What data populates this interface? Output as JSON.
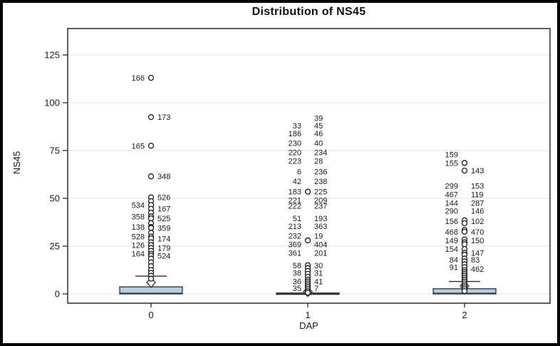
{
  "window": {
    "background": "#ffffff",
    "border_color": "#000000"
  },
  "chart_data": {
    "type": "boxplot",
    "title": "Distribution of NS45",
    "xlabel": "DAP",
    "ylabel": "NS45",
    "categories": [
      "0",
      "1",
      "2"
    ],
    "yticks": [
      0,
      25,
      50,
      75,
      100,
      125
    ],
    "ylim": [
      -2,
      139
    ],
    "grid": "horizontal",
    "colors": {
      "box_fill": "#b9cde1",
      "box_stroke": "#2f2f2f",
      "grid": "#e3e3e3",
      "frame": "#2b2b2b",
      "text": "#1a1a1a",
      "marker_fill": "#ffffff"
    },
    "groups": [
      {
        "category": "0",
        "box": {
          "q1": 0,
          "median": 0.4,
          "q3": 3.7,
          "mean": 6.0,
          "whisker_high": 9.3,
          "whisker_low": 0
        },
        "outlier_circles": [
          113,
          92.5,
          77.5,
          61.5,
          50.5,
          48.5,
          46.5,
          44.5,
          42.5,
          40.5,
          39.5,
          37,
          35,
          34.5,
          32,
          30,
          29,
          27,
          25.5,
          24,
          22.5,
          21,
          20,
          18.5,
          16.5,
          14.5,
          12.5,
          11,
          9.5,
          8
        ],
        "outlier_labels": [
          {
            "l": "166",
            "v": 113
          },
          {
            "r": "173",
            "v": 92.5
          },
          {
            "l": "165",
            "v": 77.5
          },
          {
            "r": "348",
            "v": 61.5
          },
          {
            "r": "526",
            "v": 50.5
          },
          {
            "l": "534",
            "v": 46.5
          },
          {
            "r": "167",
            "v": 44.5
          },
          {
            "l": "358",
            "v": 40.5
          },
          {
            "r": "525",
            "v": 39.5
          },
          {
            "l": "138",
            "v": 35
          },
          {
            "r": "359",
            "v": 34.5
          },
          {
            "l": "528",
            "v": 30
          },
          {
            "r": "174",
            "v": 29
          },
          {
            "l": "126",
            "v": 25.5
          },
          {
            "r": "179",
            "v": 24
          },
          {
            "l": "164",
            "v": 21
          },
          {
            "r": "524",
            "v": 20
          }
        ]
      },
      {
        "category": "1",
        "box": {
          "q1": 0,
          "median": 0,
          "q3": 0.5,
          "mean": 1.2,
          "whisker_high": 0.5,
          "whisker_low": 0
        },
        "outlier_circles": [
          53.5,
          28,
          15,
          13.5,
          12,
          10.5,
          9,
          7.5,
          6.5,
          5.5,
          4.5,
          3.5,
          2.5,
          1.5,
          0.7
        ],
        "outlier_labels": [
          {
            "r": "39",
            "v": 92
          },
          {
            "l": "33",
            "r": "45",
            "v": 88
          },
          {
            "l": "186",
            "r": "46",
            "v": 84
          },
          {
            "l": "230",
            "r": "40",
            "v": 79
          },
          {
            "l": "220",
            "r": "234",
            "v": 74
          },
          {
            "l": "223",
            "r": "28",
            "v": 69.5
          },
          {
            "l": "6",
            "r": "236",
            "v": 64
          },
          {
            "l": "42",
            "r": "238",
            "v": 59
          },
          {
            "l": "183",
            "r": "225",
            "v": 53.5
          },
          {
            "l": "221",
            "r": "209",
            "v": 49
          },
          {
            "l": "222",
            "r": "237",
            "v": 46
          },
          {
            "l": "51",
            "r": "193",
            "v": 39.5
          },
          {
            "l": "213",
            "r": "363",
            "v": 35.5
          },
          {
            "l": "232",
            "r": "19",
            "v": 30.5
          },
          {
            "l": "369",
            "r": "404",
            "v": 26
          },
          {
            "l": "361",
            "r": "201",
            "v": 21.5
          },
          {
            "l": "58",
            "r": "30",
            "v": 15
          },
          {
            "l": "38",
            "r": "31",
            "v": 11
          },
          {
            "l": "36",
            "r": "41",
            "v": 6.5
          },
          {
            "l": "35",
            "r": "7",
            "v": 3
          }
        ]
      },
      {
        "category": "2",
        "box": {
          "q1": 0,
          "median": 0.4,
          "q3": 2.7,
          "mean": 4.1,
          "whisker_high": 6.5,
          "whisker_low": 0
        },
        "outlier_circles": [
          68.5,
          64.5,
          38.5,
          37,
          33.5,
          32.5,
          28.5,
          27,
          26,
          23.5,
          21.5,
          20.5,
          18.5,
          17,
          15.5,
          14,
          12.5,
          11.5,
          10.5,
          9.5,
          8.5,
          7.5,
          6.5,
          5.5,
          4.5,
          3.5,
          2.5,
          1.5
        ],
        "outlier_labels": [
          {
            "l": "159",
            "v": 73
          },
          {
            "l": "155",
            "v": 68.5
          },
          {
            "r": "143",
            "v": 64.5
          },
          {
            "l": "299",
            "r": "153",
            "v": 56.5
          },
          {
            "l": "467",
            "r": "119",
            "v": 52
          },
          {
            "l": "144",
            "r": "287",
            "v": 47.5
          },
          {
            "l": "290",
            "r": "146",
            "v": 43.5
          },
          {
            "l": "156",
            "r": "102",
            "v": 38
          },
          {
            "l": "468",
            "r": "470",
            "v": 32.5
          },
          {
            "l": "149",
            "r": "150",
            "v": 28
          },
          {
            "l": "154",
            "v": 23.5
          },
          {
            "r": "147",
            "v": 21.5
          },
          {
            "l": "84",
            "r": "83",
            "v": 18
          },
          {
            "l": "91",
            "v": 14
          },
          {
            "r": "462",
            "v": 13
          }
        ]
      }
    ]
  }
}
